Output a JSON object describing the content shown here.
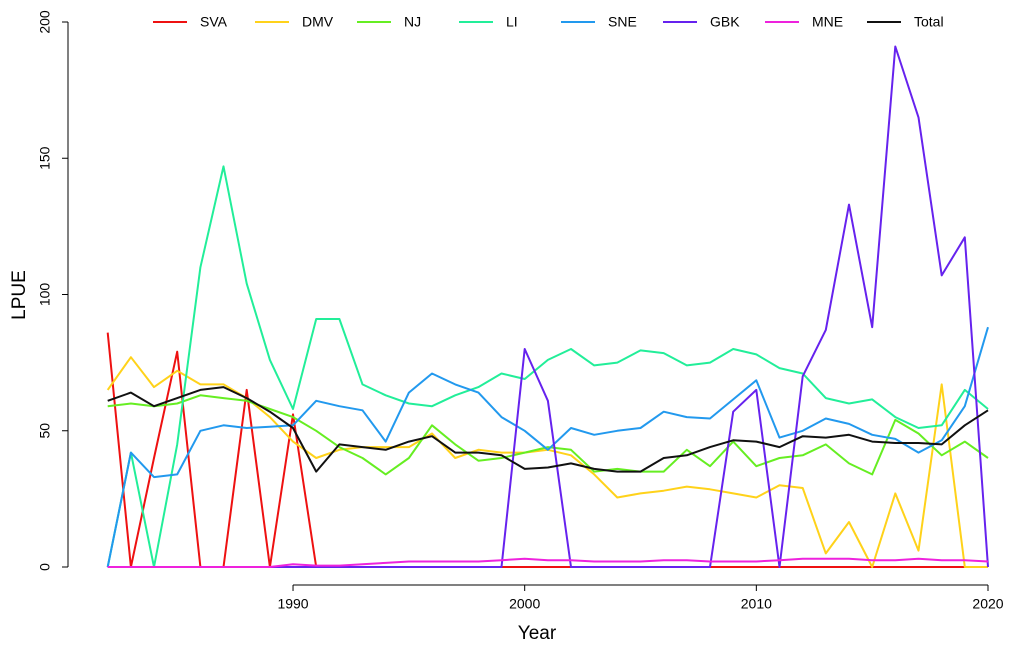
{
  "chart_data": {
    "type": "line",
    "xlabel": "Year",
    "ylabel": "LPUE",
    "x": [
      1982,
      1983,
      1984,
      1985,
      1986,
      1987,
      1988,
      1989,
      1990,
      1991,
      1992,
      1993,
      1994,
      1995,
      1996,
      1997,
      1998,
      1999,
      2000,
      2001,
      2002,
      2003,
      2004,
      2005,
      2006,
      2007,
      2008,
      2009,
      2010,
      2011,
      2012,
      2013,
      2014,
      2015,
      2016,
      2017,
      2018,
      2019,
      2020
    ],
    "xlim": [
      1982,
      2020
    ],
    "xticks": [
      1990,
      2000,
      2010,
      2020
    ],
    "ylim": [
      0,
      200
    ],
    "yticks": [
      0,
      50,
      100,
      150,
      200
    ],
    "grid": false,
    "legend": "top",
    "series": [
      {
        "name": "SVA",
        "color": "#ee1111",
        "values": [
          86,
          0,
          40,
          79,
          0,
          0,
          65,
          0,
          56,
          0,
          0,
          0,
          0,
          0,
          0,
          0,
          0,
          0,
          0,
          0,
          0,
          0,
          0,
          0,
          0,
          0,
          0,
          0,
          0,
          0,
          0,
          0,
          0,
          0,
          0,
          0,
          0,
          0,
          0
        ]
      },
      {
        "name": "DMV",
        "color": "#ffd21a",
        "values": [
          65,
          77,
          66,
          72,
          67,
          67,
          62,
          55,
          46,
          40,
          43,
          44,
          44,
          44,
          49,
          40,
          43,
          42,
          42,
          43,
          41,
          34,
          25.5,
          27,
          28,
          29.5,
          28.5,
          27,
          25.5,
          30,
          29,
          5,
          16.5,
          0,
          27,
          6,
          67,
          0,
          0
        ]
      },
      {
        "name": "NJ",
        "color": "#66ee22",
        "values": [
          59,
          60,
          59,
          60,
          63,
          62,
          61,
          58,
          55,
          50,
          44,
          40,
          34,
          40,
          52,
          45,
          39,
          40,
          42,
          44,
          43,
          35,
          36,
          35,
          35,
          43,
          37,
          46,
          37,
          40,
          41,
          45,
          38,
          34,
          54,
          49,
          41,
          46,
          40
        ]
      },
      {
        "name": "LI",
        "color": "#22ee99",
        "values": [
          0,
          42,
          0,
          45,
          110,
          147,
          104,
          76,
          58,
          91,
          91,
          67,
          63,
          60,
          59,
          63,
          66,
          71,
          69,
          76,
          80,
          74,
          75,
          79.5,
          78.5,
          74,
          75,
          80,
          78,
          73,
          71,
          62,
          60,
          61.5,
          55,
          51,
          52,
          65,
          58
        ]
      },
      {
        "name": "SNE",
        "color": "#2299ee",
        "values": [
          0,
          42,
          33,
          34,
          50,
          52,
          51,
          51.5,
          52,
          61,
          59,
          57.5,
          46,
          64,
          71,
          67,
          64,
          55,
          50,
          43,
          51,
          48.5,
          50,
          51,
          57,
          55,
          54.5,
          61.5,
          68.5,
          47.5,
          50,
          54.5,
          52.5,
          48.5,
          47,
          42,
          46.5,
          59,
          88
        ]
      },
      {
        "name": "GBK",
        "color": "#6622ee",
        "values": [
          0,
          0,
          0,
          0,
          0,
          0,
          0,
          0,
          0,
          0,
          0,
          0,
          0,
          0,
          0,
          0,
          0,
          0,
          80,
          61,
          0,
          0,
          0,
          0,
          0,
          0,
          0,
          57,
          65,
          0,
          70,
          87,
          133,
          88,
          191,
          165,
          107,
          121,
          0
        ]
      },
      {
        "name": "MNE",
        "color": "#ee22dd",
        "values": [
          0,
          0,
          0,
          0,
          0,
          0,
          0,
          0,
          1,
          0.5,
          0.5,
          1,
          1.5,
          2,
          2,
          2,
          2,
          2.5,
          3,
          2.5,
          2.5,
          2,
          2,
          2,
          2.5,
          2.5,
          2,
          2,
          2,
          2.5,
          3,
          3,
          3,
          2.5,
          2.5,
          3,
          2.5,
          2.5,
          2
        ]
      },
      {
        "name": "Total",
        "color": "#111111",
        "values": [
          61,
          64,
          59,
          62,
          65,
          66,
          62,
          57,
          51,
          35,
          45,
          44,
          43,
          46,
          48,
          42,
          42,
          41,
          36,
          36.5,
          38,
          36,
          35,
          35,
          40,
          41,
          44,
          46.5,
          46,
          44,
          48,
          47.5,
          48.5,
          46,
          45.5,
          45.5,
          45,
          52,
          57.5
        ]
      }
    ]
  }
}
